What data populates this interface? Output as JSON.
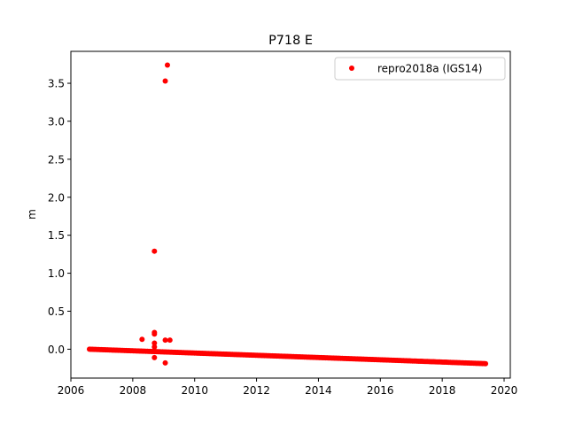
{
  "chart_data": {
    "type": "scatter",
    "title": "P718 E",
    "xlabel": "",
    "ylabel": "m",
    "xlim": [
      2006.0,
      2020.2
    ],
    "ylim": [
      -0.38,
      3.92
    ],
    "xticks": [
      2006,
      2008,
      2010,
      2012,
      2014,
      2016,
      2018,
      2020
    ],
    "xtick_labels": [
      "2006",
      "2008",
      "2010",
      "2012",
      "2014",
      "2016",
      "2018",
      "2020"
    ],
    "yticks": [
      0.0,
      0.5,
      1.0,
      1.5,
      2.0,
      2.5,
      3.0,
      3.5
    ],
    "ytick_labels": [
      "0.0",
      "0.5",
      "1.0",
      "1.5",
      "2.0",
      "2.5",
      "3.0",
      "3.5"
    ],
    "grid": false,
    "legend_position": "top-right",
    "series": [
      {
        "name": "repro2018a (IGS14)",
        "color": "#ff0000",
        "marker": "circle",
        "trend": {
          "x_start": 2006.6,
          "y_start": 0.0,
          "x_end": 2019.4,
          "y_end": -0.19
        },
        "outliers": [
          {
            "x": 2008.3,
            "y": 0.13
          },
          {
            "x": 2008.7,
            "y": 1.29
          },
          {
            "x": 2008.7,
            "y": 0.22
          },
          {
            "x": 2008.7,
            "y": 0.2
          },
          {
            "x": 2008.7,
            "y": 0.08
          },
          {
            "x": 2008.7,
            "y": 0.03
          },
          {
            "x": 2008.7,
            "y": -0.11
          },
          {
            "x": 2009.05,
            "y": 3.53
          },
          {
            "x": 2009.12,
            "y": 3.74
          },
          {
            "x": 2009.05,
            "y": 0.12
          },
          {
            "x": 2009.2,
            "y": 0.12
          },
          {
            "x": 2009.05,
            "y": -0.18
          }
        ]
      }
    ]
  }
}
